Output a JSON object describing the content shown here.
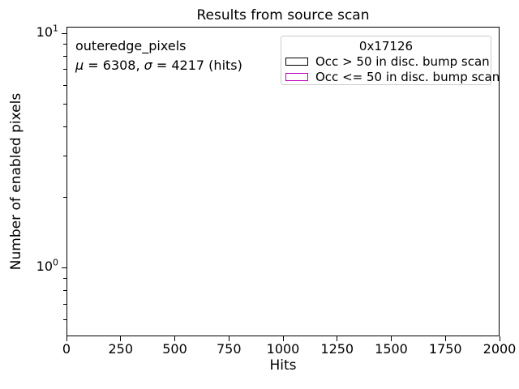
{
  "chart_data": {
    "type": "bar",
    "title": "Results from source scan",
    "xlabel": "Hits",
    "ylabel": "Number of enabled pixels",
    "xlim": [
      0,
      2000
    ],
    "xticks": [
      0,
      250,
      500,
      750,
      1000,
      1250,
      1500,
      1750,
      2000
    ],
    "yscale": "log",
    "ylim": [
      0.51,
      10.67
    ],
    "yticks_major": [
      {
        "value": 1,
        "base": "10",
        "exp": "0"
      },
      {
        "value": 10,
        "base": "10",
        "exp": "1"
      }
    ],
    "series": [],
    "grid": false,
    "annotation": {
      "line1": "outeredge_pixels",
      "line2": "μ = 6308, σ = 4217 (hits)",
      "line2_parts": [
        {
          "text": "μ",
          "italic": true
        },
        {
          "text": " = 6308, ",
          "italic": false
        },
        {
          "text": "σ",
          "italic": true
        },
        {
          "text": " = 4217 (hits)",
          "italic": false
        }
      ],
      "mu": 6308,
      "sigma": 4217
    },
    "legend": {
      "title": "0x17126",
      "position": "upper right",
      "entries": [
        {
          "label": "Occ > 50 in disc. bump scan",
          "color": "#000000"
        },
        {
          "label": "Occ <= 50 in disc. bump scan",
          "color": "#bf00bf"
        }
      ]
    }
  }
}
